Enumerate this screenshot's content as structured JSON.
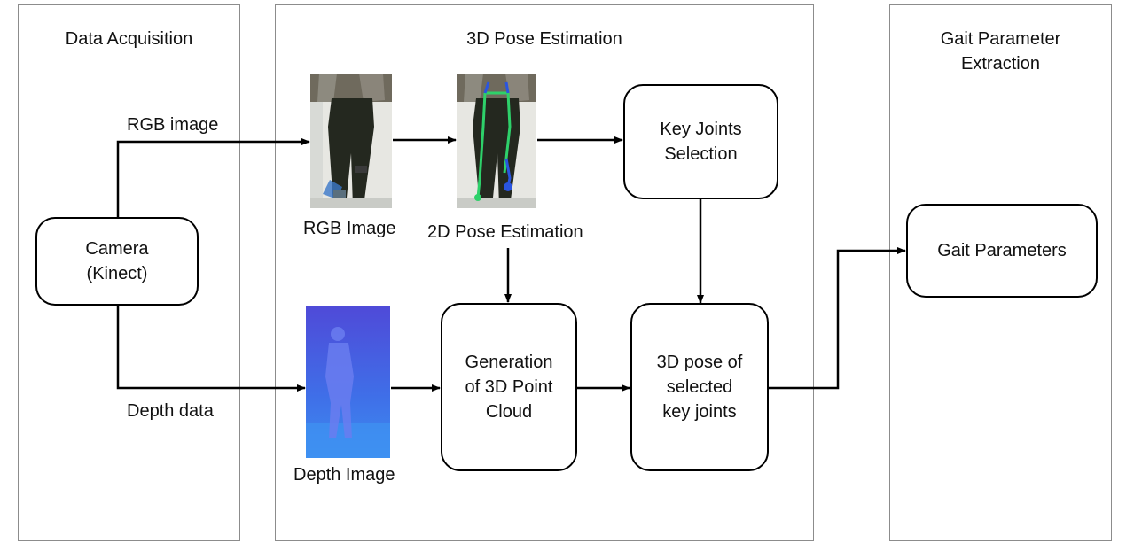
{
  "panels": {
    "acquisition": "Data Acquisition",
    "pose": "3D Pose Estimation",
    "gait_line1": "Gait Parameter",
    "gait_line2": "Extraction"
  },
  "nodes": {
    "camera": "Camera\n(Kinect)",
    "key_joints": "Key Joints\nSelection",
    "point_cloud": "Generation\nof 3D Point\nCloud",
    "pose_3d": "3D pose of\nselected\nkey joints",
    "gait_params": "Gait Parameters"
  },
  "edge_labels": {
    "rgb": "RGB image",
    "depth": "Depth data"
  },
  "image_captions": {
    "rgb": "RGB Image",
    "pose2d": "2D Pose Estimation",
    "depth": "Depth Image"
  },
  "colors": {
    "panel_border": "#8c8c8c",
    "arrow": "#000000",
    "depth_blue": "#3f6fe8",
    "skeleton_green": "#2ed16a",
    "skeleton_blue": "#2a55e0"
  }
}
